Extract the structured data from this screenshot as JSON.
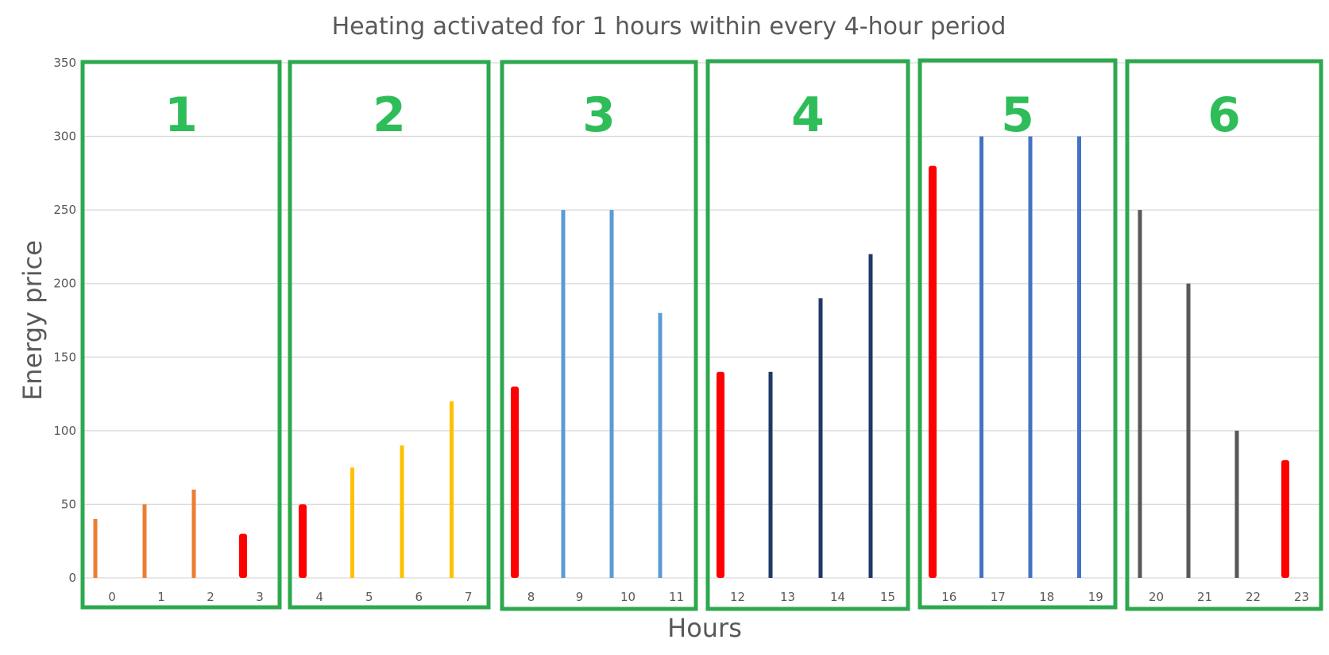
{
  "chart_data": {
    "type": "bar",
    "title": "Heating activated for 1 hours within every 4-hour period",
    "xlabel": "Hours",
    "ylabel": "Energy price",
    "ylim": [
      0,
      350
    ],
    "yticks": [
      0,
      50,
      100,
      150,
      200,
      250,
      300,
      350
    ],
    "grid": true,
    "categories": [
      "0",
      "1",
      "2",
      "3",
      "4",
      "5",
      "6",
      "7",
      "8",
      "9",
      "10",
      "11",
      "12",
      "13",
      "14",
      "15",
      "16",
      "17",
      "18",
      "19",
      "20",
      "21",
      "22",
      "23"
    ],
    "values": [
      40,
      50,
      60,
      30,
      50,
      75,
      90,
      120,
      130,
      250,
      250,
      180,
      140,
      140,
      190,
      220,
      280,
      300,
      300,
      300,
      250,
      200,
      100,
      80
    ],
    "bar_colors": [
      "#ed7d31",
      "#ed7d31",
      "#ed7d31",
      "#ff0000",
      "#ff0000",
      "#ffc000",
      "#ffc000",
      "#ffc000",
      "#ff0000",
      "#5b9bd5",
      "#5b9bd5",
      "#5b9bd5",
      "#ff0000",
      "#203864",
      "#203864",
      "#203864",
      "#ff0000",
      "#4472c4",
      "#4472c4",
      "#4472c4",
      "#595959",
      "#595959",
      "#595959",
      "#ff0000"
    ],
    "activated_hours": [
      3,
      4,
      8,
      12,
      16,
      23
    ],
    "activated_color": "#ff0000",
    "groups": [
      {
        "label": "1",
        "hours": [
          0,
          3
        ]
      },
      {
        "label": "2",
        "hours": [
          4,
          7
        ]
      },
      {
        "label": "3",
        "hours": [
          8,
          11
        ]
      },
      {
        "label": "4",
        "hours": [
          12,
          15
        ]
      },
      {
        "label": "5",
        "hours": [
          16,
          19
        ]
      },
      {
        "label": "6",
        "hours": [
          20,
          23
        ]
      }
    ],
    "group_box_color": "#2ea84f",
    "group_label_color": "#2ebd59",
    "grid_color": "#d9d9d9",
    "text_color": "#595959"
  }
}
